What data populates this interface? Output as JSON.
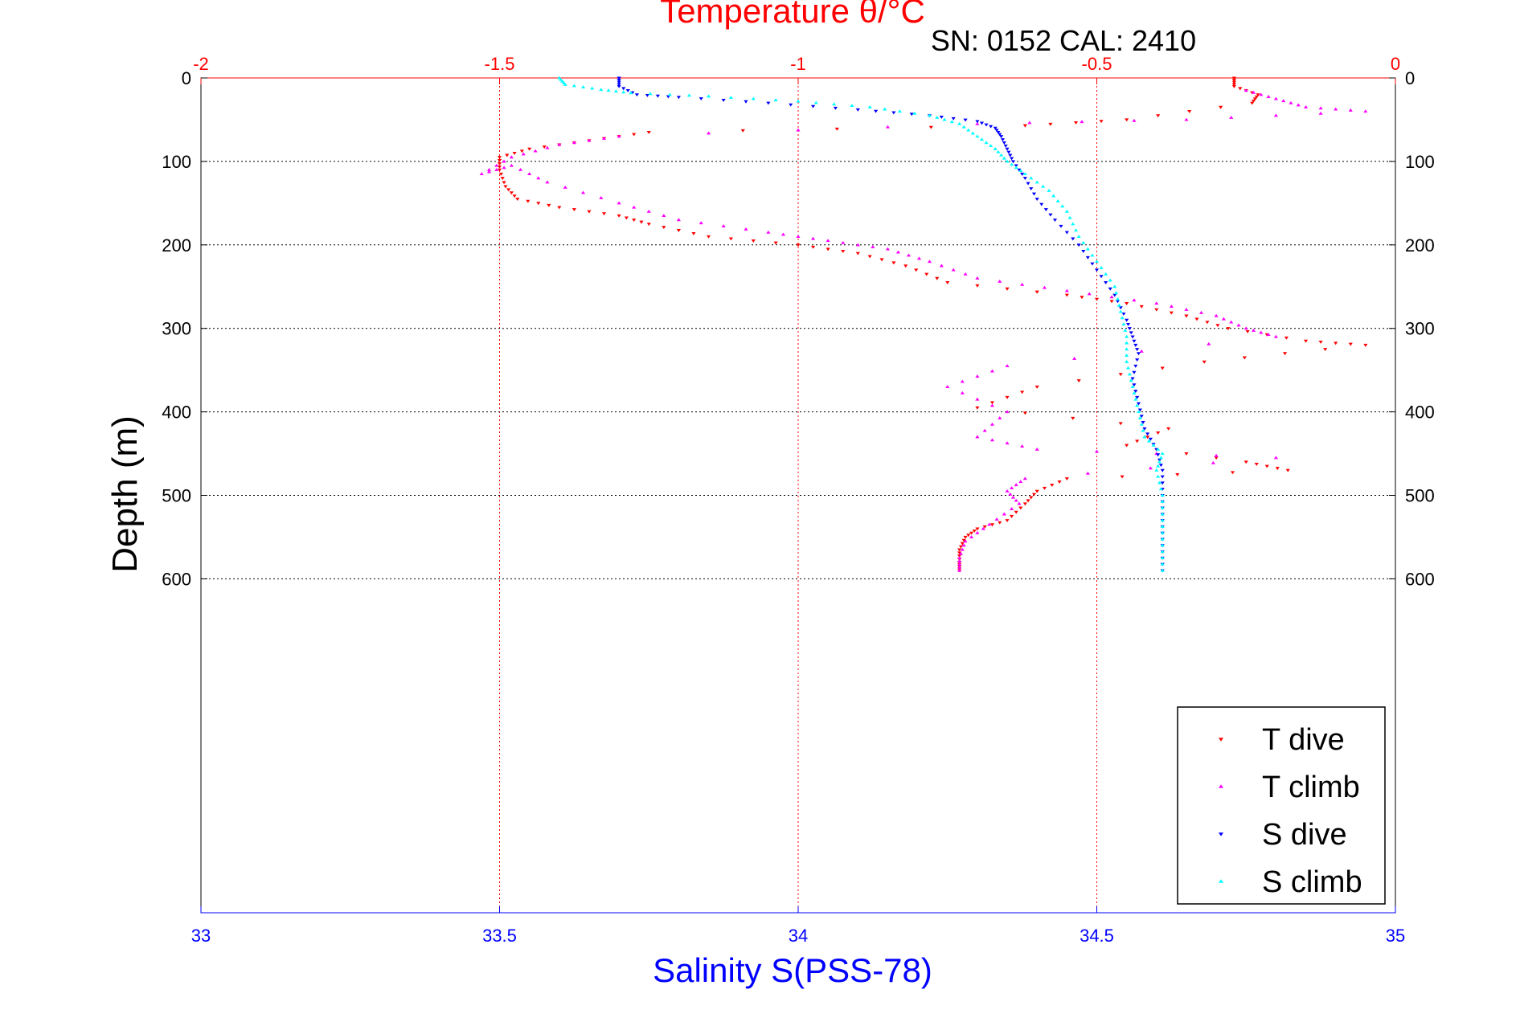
{
  "chart_data": {
    "type": "scatter",
    "top_axis": {
      "label": "Temperature θ/°C",
      "range": [
        -2,
        0
      ],
      "ticks": [
        "-2",
        "-1.5",
        "-1",
        "-0.5",
        "0"
      ],
      "color": "#ff0000"
    },
    "bottom_axis": {
      "label": "Salinity S(PSS-78)",
      "range": [
        33,
        35
      ],
      "ticks": [
        "33",
        "33.5",
        "34",
        "34.5",
        "35"
      ],
      "color": "#0000ff"
    },
    "y_axis": {
      "label": "Depth (m)",
      "range": [
        0,
        1000
      ],
      "inverted": true,
      "ticks": [
        "0",
        "100",
        "200",
        "300",
        "400",
        "500",
        "600"
      ]
    },
    "subtitle": "SN: 0152  CAL: 2410",
    "grid": true,
    "legend_position": "bottom-right",
    "series": [
      {
        "name": "T dive",
        "axis": "temperature",
        "marker": "triangle-down",
        "color": "#ff0000",
        "points": [
          [
            -0.27,
            0
          ],
          [
            -0.27,
            10
          ],
          [
            -0.23,
            20
          ],
          [
            -0.24,
            30
          ],
          [
            -0.45,
            50
          ],
          [
            -0.62,
            57
          ],
          [
            -1.25,
            65
          ],
          [
            -1.35,
            75
          ],
          [
            -1.45,
            85
          ],
          [
            -1.5,
            95
          ],
          [
            -1.5,
            110
          ],
          [
            -1.49,
            130
          ],
          [
            -1.47,
            145
          ],
          [
            -1.4,
            155
          ],
          [
            -1.3,
            165
          ],
          [
            -1.25,
            175
          ],
          [
            -1.15,
            190
          ],
          [
            -1.0,
            200
          ],
          [
            -0.9,
            210
          ],
          [
            -0.82,
            225
          ],
          [
            -0.75,
            245
          ],
          [
            -0.55,
            260
          ],
          [
            -0.45,
            270
          ],
          [
            -0.35,
            285
          ],
          [
            -0.28,
            300
          ],
          [
            -0.15,
            315
          ],
          [
            -0.05,
            320
          ],
          [
            -0.32,
            340
          ],
          [
            -0.6,
            370
          ],
          [
            -0.7,
            395
          ],
          [
            -0.38,
            420
          ],
          [
            -0.45,
            440
          ],
          [
            -0.25,
            460
          ],
          [
            -0.18,
            470
          ],
          [
            -0.55,
            480
          ],
          [
            -0.6,
            495
          ],
          [
            -0.62,
            510
          ],
          [
            -0.65,
            530
          ],
          [
            -0.7,
            540
          ],
          [
            -0.72,
            550
          ],
          [
            -0.73,
            565
          ],
          [
            -0.73,
            580
          ],
          [
            -0.73,
            590
          ]
        ]
      },
      {
        "name": "T climb",
        "axis": "temperature",
        "marker": "triangle-up",
        "color": "#ff00ff",
        "points": [
          [
            -0.25,
            15
          ],
          [
            -0.2,
            25
          ],
          [
            -0.15,
            35
          ],
          [
            -0.05,
            40
          ],
          [
            -0.35,
            50
          ],
          [
            -0.7,
            55
          ],
          [
            -1.3,
            70
          ],
          [
            -1.4,
            80
          ],
          [
            -1.48,
            95
          ],
          [
            -1.53,
            115
          ],
          [
            -1.48,
            105
          ],
          [
            -1.42,
            125
          ],
          [
            -1.3,
            150
          ],
          [
            -1.2,
            170
          ],
          [
            -1.05,
            185
          ],
          [
            -0.95,
            195
          ],
          [
            -0.85,
            205
          ],
          [
            -0.78,
            220
          ],
          [
            -0.7,
            240
          ],
          [
            -0.55,
            255
          ],
          [
            -0.4,
            270
          ],
          [
            -0.3,
            285
          ],
          [
            -0.25,
            300
          ],
          [
            -0.2,
            310
          ],
          [
            -0.65,
            345
          ],
          [
            -0.75,
            370
          ],
          [
            -0.65,
            400
          ],
          [
            -0.7,
            430
          ],
          [
            -0.6,
            445
          ],
          [
            -0.2,
            455
          ],
          [
            -0.62,
            480
          ],
          [
            -0.65,
            495
          ],
          [
            -0.63,
            510
          ],
          [
            -0.68,
            535
          ],
          [
            -0.72,
            555
          ],
          [
            -0.73,
            575
          ],
          [
            -0.73,
            590
          ]
        ]
      },
      {
        "name": "S dive",
        "axis": "salinity",
        "marker": "triangle-down",
        "color": "#0000ff",
        "points": [
          [
            33.7,
            0
          ],
          [
            33.7,
            10
          ],
          [
            33.73,
            20
          ],
          [
            33.8,
            23
          ],
          [
            33.95,
            30
          ],
          [
            34.1,
            38
          ],
          [
            34.22,
            45
          ],
          [
            34.3,
            52
          ],
          [
            34.33,
            60
          ],
          [
            34.34,
            70
          ],
          [
            34.35,
            85
          ],
          [
            34.36,
            100
          ],
          [
            34.38,
            120
          ],
          [
            34.4,
            145
          ],
          [
            34.43,
            170
          ],
          [
            34.47,
            200
          ],
          [
            34.5,
            230
          ],
          [
            34.53,
            260
          ],
          [
            34.55,
            290
          ],
          [
            34.56,
            310
          ],
          [
            34.57,
            330
          ],
          [
            34.56,
            360
          ],
          [
            34.57,
            390
          ],
          [
            34.58,
            420
          ],
          [
            34.6,
            445
          ],
          [
            34.61,
            470
          ],
          [
            34.61,
            500
          ],
          [
            34.61,
            530
          ],
          [
            34.61,
            560
          ],
          [
            34.61,
            590
          ]
        ]
      },
      {
        "name": "S climb",
        "axis": "salinity",
        "marker": "triangle-up",
        "color": "#00ffff",
        "points": [
          [
            33.6,
            0
          ],
          [
            33.61,
            8
          ],
          [
            33.67,
            14
          ],
          [
            33.72,
            18
          ],
          [
            33.85,
            22
          ],
          [
            34.0,
            28
          ],
          [
            34.12,
            35
          ],
          [
            34.22,
            45
          ],
          [
            34.27,
            55
          ],
          [
            34.3,
            70
          ],
          [
            34.33,
            85
          ],
          [
            34.35,
            100
          ],
          [
            34.38,
            115
          ],
          [
            34.42,
            135
          ],
          [
            34.45,
            160
          ],
          [
            34.47,
            190
          ],
          [
            34.5,
            220
          ],
          [
            34.53,
            250
          ],
          [
            34.54,
            280
          ],
          [
            34.55,
            310
          ],
          [
            34.55,
            340
          ],
          [
            34.56,
            370
          ],
          [
            34.57,
            400
          ],
          [
            34.58,
            430
          ],
          [
            34.61,
            450
          ],
          [
            34.6,
            470
          ],
          [
            34.61,
            500
          ],
          [
            34.61,
            530
          ],
          [
            34.61,
            560
          ],
          [
            34.61,
            590
          ]
        ]
      }
    ]
  }
}
